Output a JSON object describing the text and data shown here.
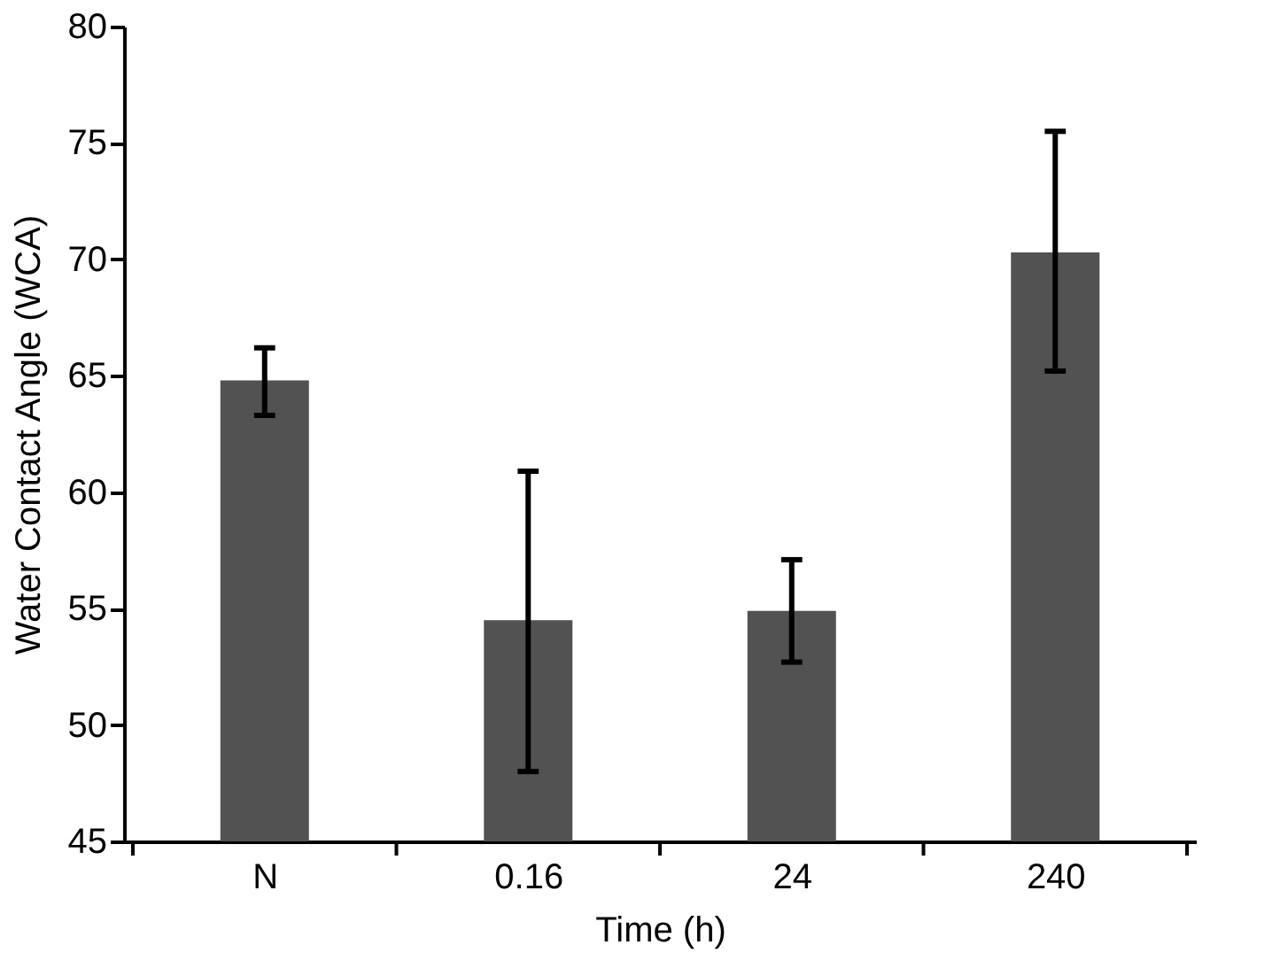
{
  "chart_data": {
    "type": "bar",
    "xlabel": "Time (h)",
    "ylabel": "Water Contact Angle (WCA)",
    "categories": [
      "N",
      "0.16",
      "24",
      "240"
    ],
    "values": [
      64.8,
      54.5,
      54.9,
      70.3
    ],
    "errors": [
      [
        63.3,
        66.2
      ],
      [
        48.0,
        60.9
      ],
      [
        52.7,
        57.1
      ],
      [
        65.2,
        75.5
      ]
    ],
    "color": "#525252",
    "ylim": [
      45,
      80
    ],
    "yticks": [
      45,
      50,
      55,
      60,
      65,
      70,
      75,
      80
    ],
    "grid": false
  }
}
